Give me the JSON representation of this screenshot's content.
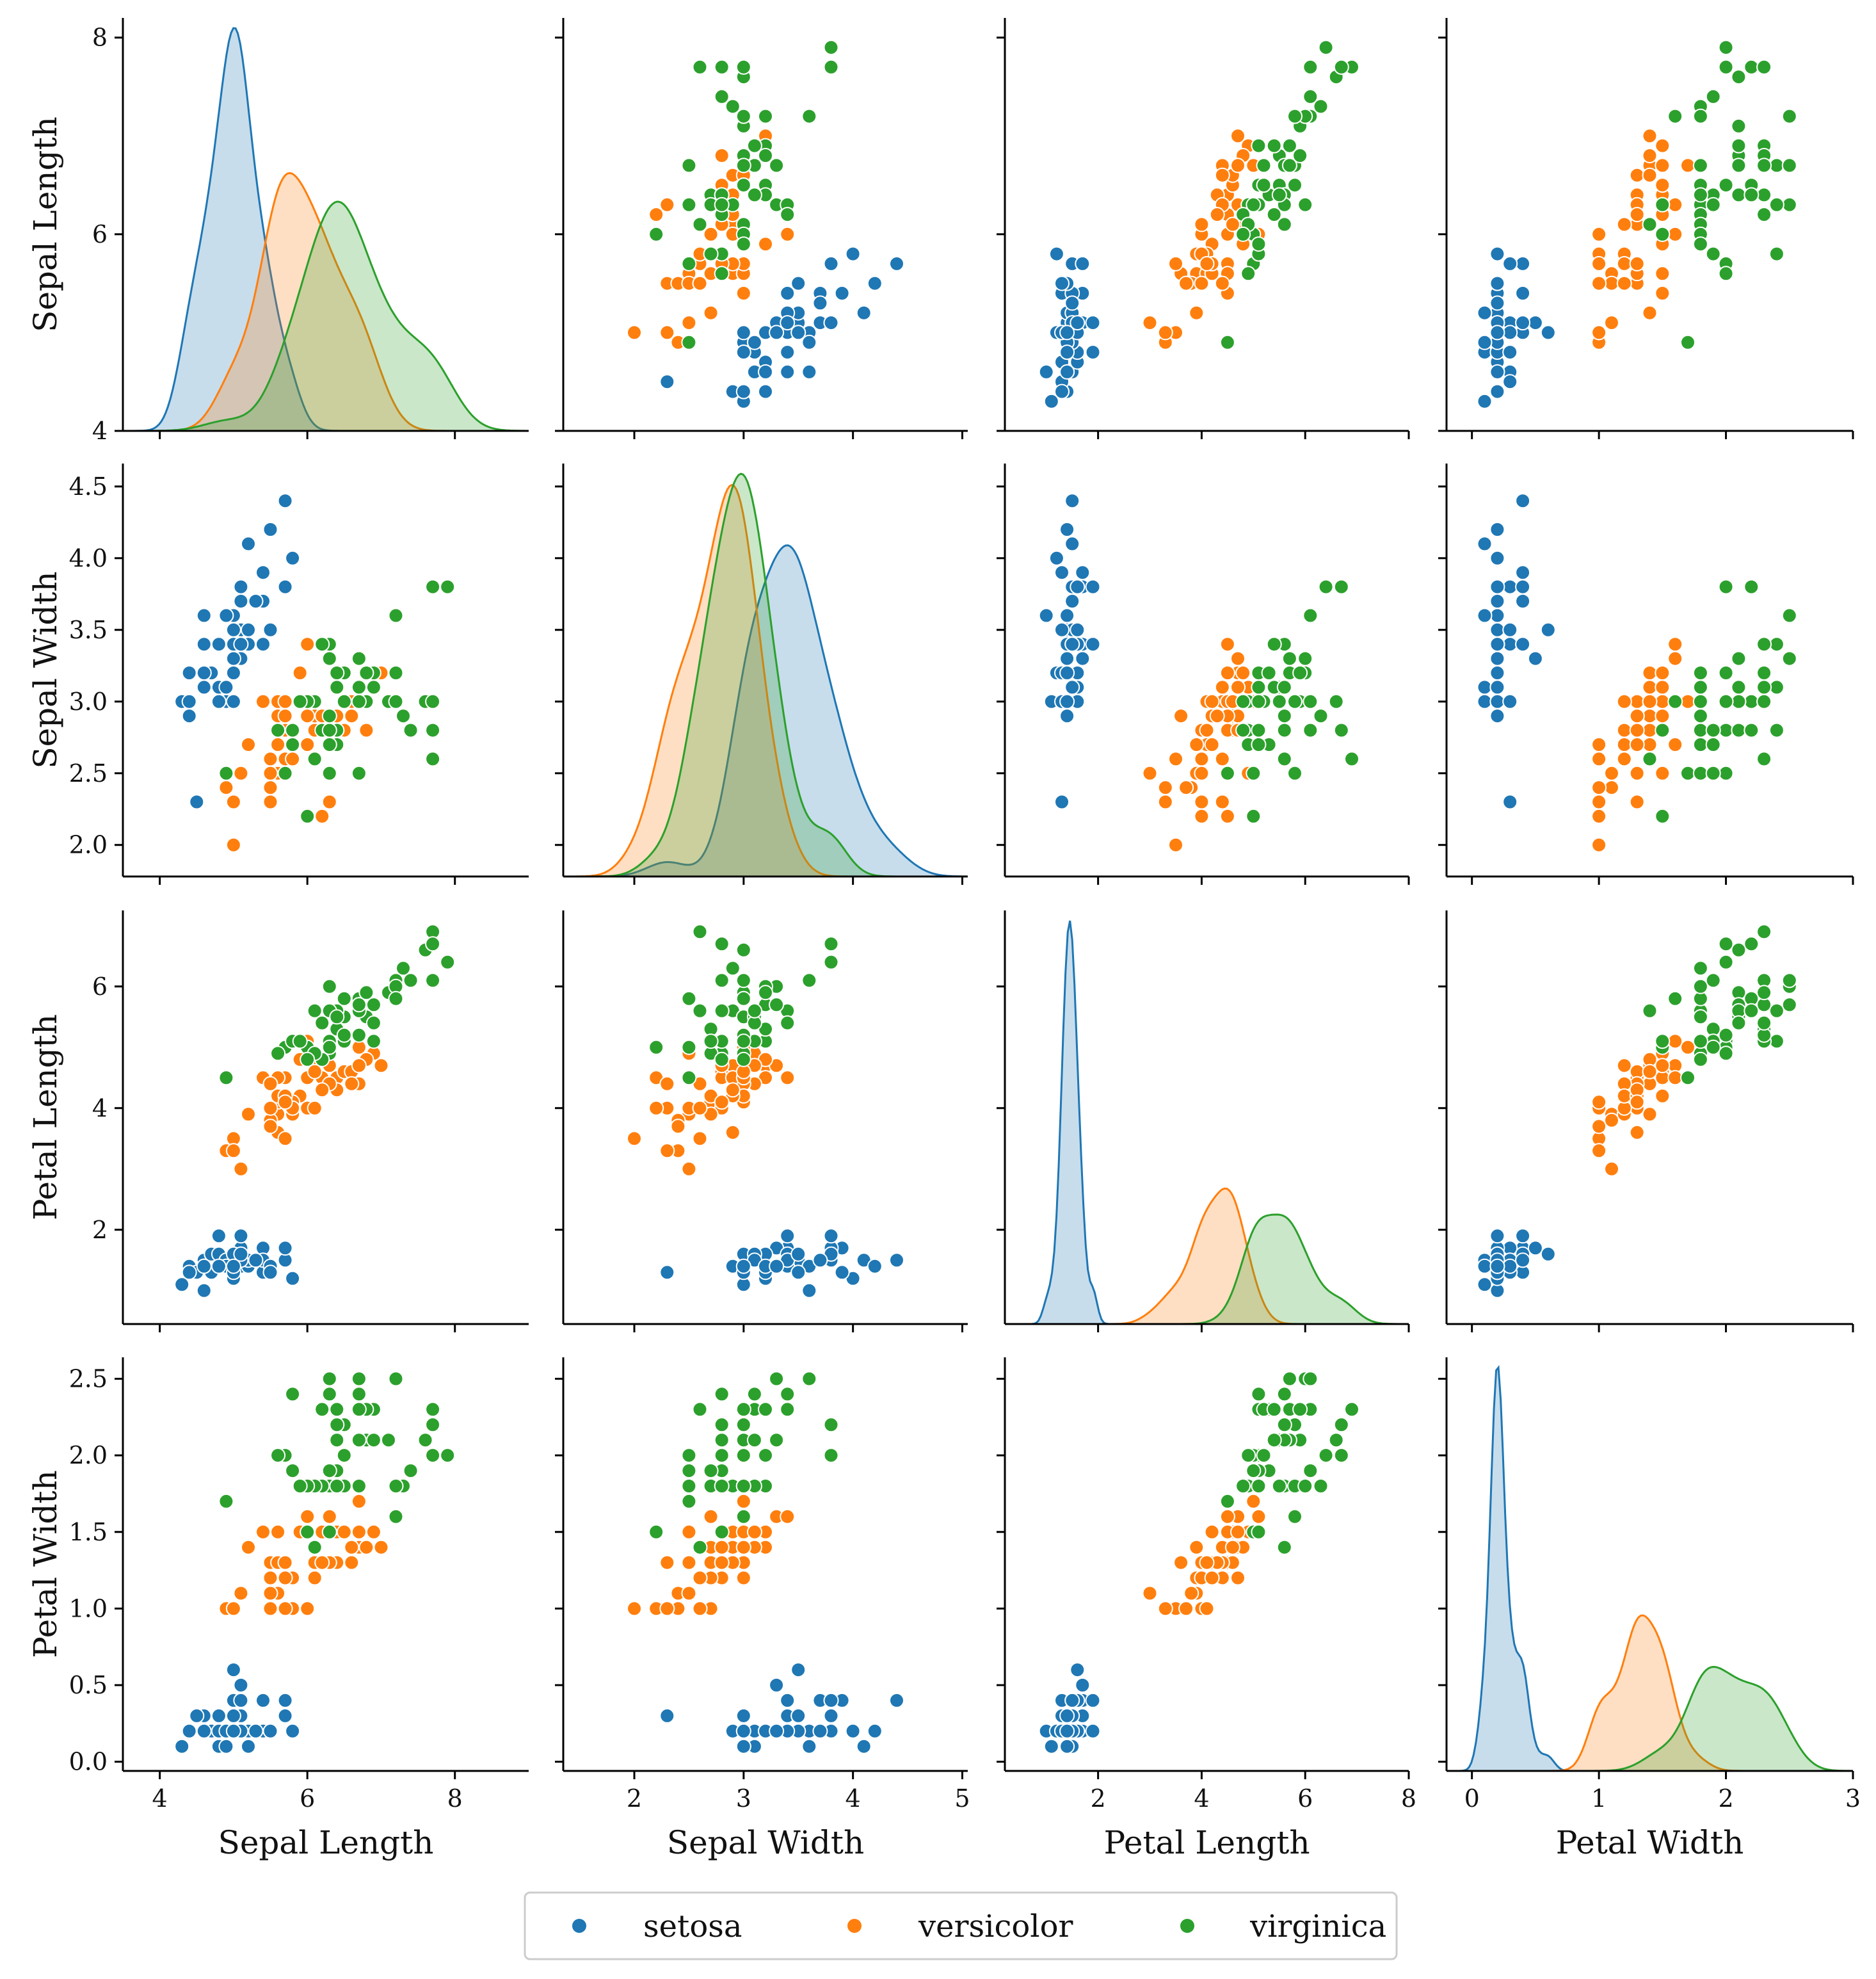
{
  "chart_data": {
    "type": "scatter",
    "title": "",
    "variables": [
      {
        "key": "sepal_length",
        "label": "Sepal Length",
        "range": [
          3.5,
          9.0
        ],
        "ticks": [
          4,
          6,
          8
        ]
      },
      {
        "key": "sepal_width",
        "label": "Sepal Width",
        "range": [
          1.35,
          5.05
        ],
        "ticks": [
          2,
          3,
          4,
          5
        ],
        "yticks": [
          "2.0",
          "2.5",
          "3.0",
          "3.5",
          "4.0",
          "4.5"
        ]
      },
      {
        "key": "petal_length",
        "label": "Petal Length",
        "range": [
          0.2,
          8.0
        ],
        "ticks": [
          2,
          4,
          6,
          8
        ],
        "yticks": [
          "2",
          "4",
          "6"
        ]
      },
      {
        "key": "petal_width",
        "label": "Petal Width",
        "range": [
          -0.2,
          3.0
        ],
        "ticks": [
          0,
          1,
          2,
          3
        ],
        "yticks": [
          "0.0",
          "0.5",
          "1.0",
          "1.5",
          "2.0",
          "2.5"
        ]
      }
    ],
    "legend": {
      "position": "bottom",
      "entries": [
        "setosa",
        "versicolor",
        "virginica"
      ]
    },
    "colors": {
      "setosa": "#1f77b4",
      "versicolor": "#ff7f0e",
      "virginica": "#2ca02c"
    },
    "diagonal": "kde",
    "series": [
      {
        "name": "setosa",
        "points": [
          [
            5.1,
            3.5,
            1.4,
            0.2
          ],
          [
            4.9,
            3.0,
            1.4,
            0.2
          ],
          [
            4.7,
            3.2,
            1.3,
            0.2
          ],
          [
            4.6,
            3.1,
            1.5,
            0.2
          ],
          [
            5.0,
            3.6,
            1.4,
            0.2
          ],
          [
            5.4,
            3.9,
            1.7,
            0.4
          ],
          [
            4.6,
            3.4,
            1.4,
            0.3
          ],
          [
            5.0,
            3.4,
            1.5,
            0.2
          ],
          [
            4.4,
            2.9,
            1.4,
            0.2
          ],
          [
            4.9,
            3.1,
            1.5,
            0.1
          ],
          [
            5.4,
            3.7,
            1.5,
            0.2
          ],
          [
            4.8,
            3.4,
            1.6,
            0.2
          ],
          [
            4.8,
            3.0,
            1.4,
            0.1
          ],
          [
            4.3,
            3.0,
            1.1,
            0.1
          ],
          [
            5.8,
            4.0,
            1.2,
            0.2
          ],
          [
            5.7,
            4.4,
            1.5,
            0.4
          ],
          [
            5.4,
            3.9,
            1.3,
            0.4
          ],
          [
            5.1,
            3.5,
            1.4,
            0.3
          ],
          [
            5.7,
            3.8,
            1.7,
            0.3
          ],
          [
            5.1,
            3.8,
            1.5,
            0.3
          ],
          [
            5.4,
            3.4,
            1.7,
            0.2
          ],
          [
            5.1,
            3.7,
            1.5,
            0.4
          ],
          [
            4.6,
            3.6,
            1.0,
            0.2
          ],
          [
            5.1,
            3.3,
            1.7,
            0.5
          ],
          [
            4.8,
            3.4,
            1.9,
            0.2
          ],
          [
            5.0,
            3.0,
            1.6,
            0.2
          ],
          [
            5.0,
            3.4,
            1.6,
            0.4
          ],
          [
            5.2,
            3.5,
            1.5,
            0.2
          ],
          [
            5.2,
            3.4,
            1.4,
            0.2
          ],
          [
            4.7,
            3.2,
            1.6,
            0.2
          ],
          [
            4.8,
            3.1,
            1.6,
            0.2
          ],
          [
            5.4,
            3.4,
            1.5,
            0.4
          ],
          [
            5.2,
            4.1,
            1.5,
            0.1
          ],
          [
            5.5,
            4.2,
            1.4,
            0.2
          ],
          [
            4.9,
            3.1,
            1.5,
            0.2
          ],
          [
            5.0,
            3.2,
            1.2,
            0.2
          ],
          [
            5.5,
            3.5,
            1.3,
            0.2
          ],
          [
            4.9,
            3.6,
            1.4,
            0.1
          ],
          [
            4.4,
            3.0,
            1.3,
            0.2
          ],
          [
            5.1,
            3.4,
            1.5,
            0.2
          ],
          [
            5.0,
            3.5,
            1.3,
            0.3
          ],
          [
            4.5,
            2.3,
            1.3,
            0.3
          ],
          [
            4.4,
            3.2,
            1.3,
            0.2
          ],
          [
            5.0,
            3.5,
            1.6,
            0.6
          ],
          [
            5.1,
            3.8,
            1.9,
            0.4
          ],
          [
            4.8,
            3.0,
            1.4,
            0.3
          ],
          [
            5.1,
            3.8,
            1.6,
            0.2
          ],
          [
            4.6,
            3.2,
            1.4,
            0.2
          ],
          [
            5.3,
            3.7,
            1.5,
            0.2
          ],
          [
            5.0,
            3.3,
            1.4,
            0.2
          ]
        ]
      },
      {
        "name": "versicolor",
        "points": [
          [
            7.0,
            3.2,
            4.7,
            1.4
          ],
          [
            6.4,
            3.2,
            4.5,
            1.5
          ],
          [
            6.9,
            3.1,
            4.9,
            1.5
          ],
          [
            5.5,
            2.3,
            4.0,
            1.3
          ],
          [
            6.5,
            2.8,
            4.6,
            1.5
          ],
          [
            5.7,
            2.8,
            4.5,
            1.3
          ],
          [
            6.3,
            3.3,
            4.7,
            1.6
          ],
          [
            4.9,
            2.4,
            3.3,
            1.0
          ],
          [
            6.6,
            2.9,
            4.6,
            1.3
          ],
          [
            5.2,
            2.7,
            3.9,
            1.4
          ],
          [
            5.0,
            2.0,
            3.5,
            1.0
          ],
          [
            5.9,
            3.0,
            4.2,
            1.5
          ],
          [
            6.0,
            2.2,
            4.0,
            1.0
          ],
          [
            6.1,
            2.9,
            4.7,
            1.4
          ],
          [
            5.6,
            2.9,
            3.6,
            1.3
          ],
          [
            6.7,
            3.1,
            4.4,
            1.4
          ],
          [
            5.6,
            3.0,
            4.5,
            1.5
          ],
          [
            5.8,
            2.7,
            4.1,
            1.0
          ],
          [
            6.2,
            2.2,
            4.5,
            1.5
          ],
          [
            5.6,
            2.5,
            3.9,
            1.1
          ],
          [
            5.9,
            3.2,
            4.8,
            1.8
          ],
          [
            6.1,
            2.8,
            4.0,
            1.3
          ],
          [
            6.3,
            2.5,
            4.9,
            1.5
          ],
          [
            6.1,
            2.8,
            4.7,
            1.2
          ],
          [
            6.4,
            2.9,
            4.3,
            1.3
          ],
          [
            6.6,
            3.0,
            4.4,
            1.4
          ],
          [
            6.8,
            2.8,
            4.8,
            1.4
          ],
          [
            6.7,
            3.0,
            5.0,
            1.7
          ],
          [
            6.0,
            2.9,
            4.5,
            1.5
          ],
          [
            5.7,
            2.6,
            3.5,
            1.0
          ],
          [
            5.5,
            2.4,
            3.8,
            1.1
          ],
          [
            5.5,
            2.4,
            3.7,
            1.0
          ],
          [
            5.8,
            2.7,
            3.9,
            1.2
          ],
          [
            6.0,
            2.7,
            5.1,
            1.6
          ],
          [
            5.4,
            3.0,
            4.5,
            1.5
          ],
          [
            6.0,
            3.4,
            4.5,
            1.6
          ],
          [
            6.7,
            3.1,
            4.7,
            1.5
          ],
          [
            6.3,
            2.3,
            4.4,
            1.3
          ],
          [
            5.6,
            3.0,
            4.1,
            1.3
          ],
          [
            5.5,
            2.5,
            4.0,
            1.3
          ],
          [
            5.5,
            2.6,
            4.4,
            1.2
          ],
          [
            6.1,
            3.0,
            4.6,
            1.4
          ],
          [
            5.8,
            2.6,
            4.0,
            1.2
          ],
          [
            5.0,
            2.3,
            3.3,
            1.0
          ],
          [
            5.6,
            2.7,
            4.2,
            1.3
          ],
          [
            5.7,
            3.0,
            4.2,
            1.2
          ],
          [
            5.7,
            2.9,
            4.2,
            1.3
          ],
          [
            6.2,
            2.9,
            4.3,
            1.3
          ],
          [
            5.1,
            2.5,
            3.0,
            1.1
          ],
          [
            5.7,
            2.8,
            4.1,
            1.3
          ]
        ]
      },
      {
        "name": "virginica",
        "points": [
          [
            6.3,
            3.3,
            6.0,
            2.5
          ],
          [
            5.8,
            2.7,
            5.1,
            1.9
          ],
          [
            7.1,
            3.0,
            5.9,
            2.1
          ],
          [
            6.3,
            2.9,
            5.6,
            1.8
          ],
          [
            6.5,
            3.0,
            5.8,
            2.2
          ],
          [
            7.6,
            3.0,
            6.6,
            2.1
          ],
          [
            4.9,
            2.5,
            4.5,
            1.7
          ],
          [
            7.3,
            2.9,
            6.3,
            1.8
          ],
          [
            6.7,
            2.5,
            5.8,
            1.8
          ],
          [
            7.2,
            3.6,
            6.1,
            2.5
          ],
          [
            6.5,
            3.2,
            5.1,
            2.0
          ],
          [
            6.4,
            2.7,
            5.3,
            1.9
          ],
          [
            6.8,
            3.0,
            5.5,
            2.1
          ],
          [
            5.7,
            2.5,
            5.0,
            2.0
          ],
          [
            5.8,
            2.8,
            5.1,
            2.4
          ],
          [
            6.4,
            3.2,
            5.3,
            2.3
          ],
          [
            6.5,
            3.0,
            5.5,
            1.8
          ],
          [
            7.7,
            3.8,
            6.7,
            2.2
          ],
          [
            7.7,
            2.6,
            6.9,
            2.3
          ],
          [
            6.0,
            2.2,
            5.0,
            1.5
          ],
          [
            6.9,
            3.2,
            5.7,
            2.3
          ],
          [
            5.6,
            2.8,
            4.9,
            2.0
          ],
          [
            7.7,
            2.8,
            6.7,
            2.0
          ],
          [
            6.3,
            2.7,
            4.9,
            1.8
          ],
          [
            6.7,
            3.3,
            5.7,
            2.1
          ],
          [
            7.2,
            3.2,
            6.0,
            1.8
          ],
          [
            6.2,
            2.8,
            4.8,
            1.8
          ],
          [
            6.1,
            3.0,
            4.9,
            1.8
          ],
          [
            6.4,
            2.8,
            5.6,
            2.1
          ],
          [
            7.2,
            3.0,
            5.8,
            1.6
          ],
          [
            7.4,
            2.8,
            6.1,
            1.9
          ],
          [
            7.9,
            3.8,
            6.4,
            2.0
          ],
          [
            6.4,
            2.8,
            5.6,
            2.2
          ],
          [
            6.3,
            2.8,
            5.1,
            1.5
          ],
          [
            6.1,
            2.6,
            5.6,
            1.4
          ],
          [
            7.7,
            3.0,
            6.1,
            2.3
          ],
          [
            6.3,
            3.4,
            5.6,
            2.4
          ],
          [
            6.4,
            3.1,
            5.5,
            1.8
          ],
          [
            6.0,
            3.0,
            4.8,
            1.8
          ],
          [
            6.9,
            3.1,
            5.4,
            2.1
          ],
          [
            6.7,
            3.1,
            5.6,
            2.4
          ],
          [
            6.9,
            3.1,
            5.1,
            2.3
          ],
          [
            5.8,
            2.7,
            5.1,
            1.9
          ],
          [
            6.8,
            3.2,
            5.9,
            2.3
          ],
          [
            6.7,
            3.3,
            5.7,
            2.5
          ],
          [
            6.7,
            3.0,
            5.2,
            2.3
          ],
          [
            6.3,
            2.5,
            5.0,
            1.9
          ],
          [
            6.5,
            3.0,
            5.2,
            2.0
          ],
          [
            6.2,
            3.4,
            5.4,
            2.3
          ],
          [
            5.9,
            3.0,
            5.1,
            1.8
          ]
        ]
      }
    ]
  }
}
